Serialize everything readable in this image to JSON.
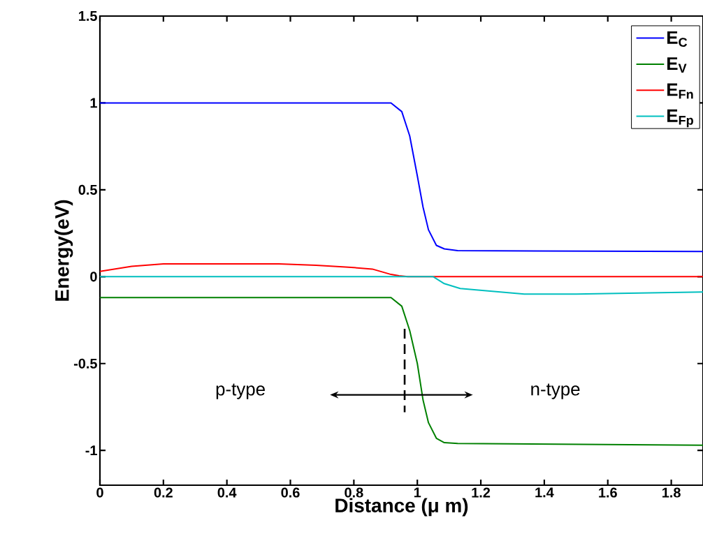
{
  "chart_data": {
    "type": "line",
    "xlabel": "Distance (μ m)",
    "ylabel": "Energy(eV)",
    "xlim": [
      0,
      1.9
    ],
    "ylim": [
      -1.2,
      1.5
    ],
    "xticks": [
      0,
      0.2,
      0.4,
      0.6,
      0.8,
      1,
      1.2,
      1.4,
      1.6,
      1.8
    ],
    "yticks": [
      -1,
      -0.5,
      0,
      0.5,
      1,
      1.5
    ],
    "legend": "top right",
    "grid": false,
    "marker": "none",
    "line_style": "solid",
    "series": [
      {
        "name": "E$_{C}$",
        "color": "#0000ff",
        "x": [
          0,
          0.917,
          0.951,
          0.976,
          1.0,
          1.018,
          1.035,
          1.06,
          1.085,
          1.127,
          1.9
        ],
        "values": [
          1.0,
          1.0,
          0.95,
          0.81,
          0.58,
          0.4,
          0.27,
          0.18,
          0.16,
          0.15,
          0.145
        ]
      },
      {
        "name": "E$_{V}$",
        "color": "#008000",
        "x": [
          0,
          0.917,
          0.951,
          0.976,
          1.0,
          1.018,
          1.035,
          1.06,
          1.085,
          1.127,
          1.9
        ],
        "values": [
          -0.12,
          -0.12,
          -0.17,
          -0.31,
          -0.5,
          -0.71,
          -0.84,
          -0.93,
          -0.955,
          -0.96,
          -0.97
        ]
      },
      {
        "name": "E$_{Fn}$",
        "color": "#ff0000",
        "x": [
          0,
          0.1,
          0.2,
          0.564,
          0.681,
          0.774,
          0.858,
          0.917,
          0.942,
          0.97,
          1.9
        ],
        "values": [
          0.03,
          0.06,
          0.074,
          0.074,
          0.066,
          0.056,
          0.044,
          0.013,
          0.005,
          0,
          0
        ]
      },
      {
        "name": "E$_{Fp}$",
        "color": "#00bfbf",
        "x": [
          0,
          1.05,
          1.085,
          1.135,
          1.236,
          1.337,
          1.5,
          1.9
        ],
        "values": [
          0,
          0,
          -0.04,
          -0.068,
          -0.084,
          -0.1,
          -0.1,
          -0.088
        ]
      }
    ],
    "ref_lines": [
      {
        "axis": "x",
        "value": 0.96,
        "color": "#000000",
        "line_style": "dashed"
      }
    ],
    "annotations": [
      "p-type",
      "n-type"
    ]
  }
}
